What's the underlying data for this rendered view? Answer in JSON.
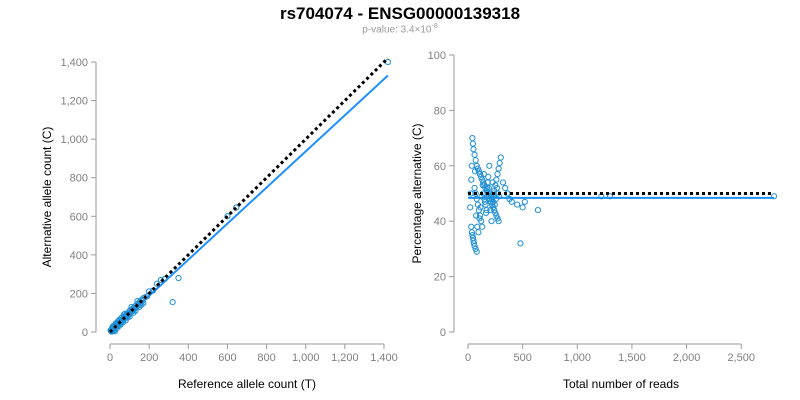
{
  "figure": {
    "title": "rs704074 - ENSG00000139318",
    "subtitle_prefix": "p-value: 3.4×10",
    "subtitle_exponent": "-8"
  },
  "colors": {
    "points": "#1f8fd6",
    "fit_line": "#1e90ff",
    "reference_line": "#000000",
    "axis": "#9a9a9a"
  },
  "chart_data": [
    {
      "type": "scatter",
      "id": "left",
      "xlabel": "Reference allele count (T)",
      "ylabel": "Alternative allele count (C)",
      "xlim": [
        0,
        1400
      ],
      "ylim": [
        0,
        1400
      ],
      "xticks": [
        0,
        200,
        400,
        600,
        800,
        1000,
        1200,
        1400
      ],
      "xtick_labels": [
        "0",
        "200",
        "400",
        "600",
        "800",
        "1,000",
        "1,200",
        "1,400"
      ],
      "yticks": [
        0,
        200,
        400,
        600,
        800,
        1000,
        1200,
        1400
      ],
      "ytick_labels": [
        "0",
        "200",
        "400",
        "600",
        "800",
        "1,000",
        "1,200",
        "1,400"
      ],
      "grid": false,
      "legend": "none",
      "reference_line": {
        "style": "dotted",
        "x": [
          0,
          1420
        ],
        "y": [
          0,
          1420
        ]
      },
      "fit_line": {
        "style": "solid",
        "x": [
          0,
          1420
        ],
        "y": [
          0,
          1330
        ]
      },
      "points": [
        [
          5,
          6
        ],
        [
          8,
          10
        ],
        [
          10,
          7
        ],
        [
          12,
          15
        ],
        [
          15,
          12
        ],
        [
          14,
          18
        ],
        [
          18,
          20
        ],
        [
          20,
          16
        ],
        [
          22,
          25
        ],
        [
          25,
          20
        ],
        [
          28,
          30
        ],
        [
          30,
          26
        ],
        [
          32,
          35
        ],
        [
          35,
          30
        ],
        [
          38,
          40
        ],
        [
          40,
          36
        ],
        [
          42,
          45
        ],
        [
          45,
          42
        ],
        [
          48,
          50
        ],
        [
          50,
          44
        ],
        [
          55,
          55
        ],
        [
          58,
          52
        ],
        [
          60,
          62
        ],
        [
          62,
          58
        ],
        [
          65,
          68
        ],
        [
          68,
          60
        ],
        [
          70,
          72
        ],
        [
          72,
          66
        ],
        [
          75,
          80
        ],
        [
          78,
          74
        ],
        [
          80,
          85
        ],
        [
          82,
          78
        ],
        [
          85,
          90
        ],
        [
          88,
          84
        ],
        [
          90,
          95
        ],
        [
          92,
          88
        ],
        [
          95,
          100
        ],
        [
          98,
          92
        ],
        [
          100,
          110
        ],
        [
          105,
          100
        ],
        [
          110,
          115
        ],
        [
          112,
          106
        ],
        [
          115,
          120
        ],
        [
          118,
          112
        ],
        [
          120,
          125
        ],
        [
          125,
          118
        ],
        [
          130,
          135
        ],
        [
          135,
          128
        ],
        [
          140,
          145
        ],
        [
          145,
          138
        ],
        [
          150,
          155
        ],
        [
          155,
          150
        ],
        [
          160,
          165
        ],
        [
          165,
          160
        ],
        [
          170,
          175
        ],
        [
          180,
          180
        ],
        [
          190,
          185
        ],
        [
          200,
          210
        ],
        [
          220,
          215
        ],
        [
          240,
          250
        ],
        [
          260,
          270
        ],
        [
          280,
          275
        ],
        [
          320,
          155
        ],
        [
          350,
          280
        ],
        [
          600,
          600
        ],
        [
          645,
          645
        ],
        [
          1420,
          1400
        ],
        [
          10,
          2
        ],
        [
          15,
          5
        ],
        [
          20,
          8
        ],
        [
          25,
          4
        ],
        [
          12,
          25
        ],
        [
          18,
          32
        ],
        [
          30,
          45
        ],
        [
          40,
          55
        ],
        [
          45,
          30
        ],
        [
          55,
          40
        ],
        [
          60,
          75
        ],
        [
          70,
          90
        ],
        [
          80,
          60
        ],
        [
          90,
          75
        ],
        [
          100,
          80
        ],
        [
          110,
          130
        ],
        [
          120,
          100
        ],
        [
          130,
          110
        ],
        [
          140,
          160
        ],
        [
          150,
          130
        ],
        [
          160,
          140
        ],
        [
          170,
          150
        ],
        [
          50,
          65
        ],
        [
          35,
          20
        ],
        [
          26,
          38
        ],
        [
          16,
          24
        ],
        [
          8,
          14
        ],
        [
          22,
          10
        ],
        [
          6,
          3
        ],
        [
          3,
          8
        ],
        [
          44,
          58
        ],
        [
          66,
          50
        ],
        [
          76,
          95
        ]
      ]
    },
    {
      "type": "scatter",
      "id": "right",
      "xlabel": "Total number of reads",
      "ylabel": "Percentage alternative (C)",
      "xlim": [
        0,
        2800
      ],
      "ylim": [
        0,
        100
      ],
      "xticks": [
        0,
        500,
        1000,
        1500,
        2000,
        2500
      ],
      "xtick_labels": [
        "0",
        "500",
        "1,000",
        "1,500",
        "2,000",
        "2,500"
      ],
      "yticks": [
        0,
        20,
        40,
        60,
        80,
        100
      ],
      "ytick_labels": [
        "0",
        "20",
        "40",
        "60",
        "80",
        "100"
      ],
      "grid": false,
      "legend": "none",
      "reference_line": {
        "style": "dotted",
        "x": [
          0,
          2800
        ],
        "y": [
          50,
          50
        ]
      },
      "fit_line": {
        "style": "solid",
        "x": [
          0,
          2800
        ],
        "y": [
          48.4,
          48.4
        ]
      },
      "points": [
        [
          40,
          70
        ],
        [
          45,
          68
        ],
        [
          50,
          66
        ],
        [
          60,
          64
        ],
        [
          70,
          62
        ],
        [
          80,
          60
        ],
        [
          90,
          59
        ],
        [
          100,
          58
        ],
        [
          110,
          57
        ],
        [
          120,
          56
        ],
        [
          130,
          55
        ],
        [
          140,
          54
        ],
        [
          150,
          53
        ],
        [
          160,
          52
        ],
        [
          170,
          51
        ],
        [
          180,
          50
        ],
        [
          190,
          49
        ],
        [
          200,
          48
        ],
        [
          210,
          47
        ],
        [
          220,
          46
        ],
        [
          230,
          45
        ],
        [
          240,
          44
        ],
        [
          250,
          43
        ],
        [
          260,
          42
        ],
        [
          270,
          41
        ],
        [
          280,
          40
        ],
        [
          30,
          38
        ],
        [
          35,
          36
        ],
        [
          40,
          35
        ],
        [
          45,
          34
        ],
        [
          50,
          33
        ],
        [
          55,
          32
        ],
        [
          60,
          31
        ],
        [
          70,
          30
        ],
        [
          80,
          29
        ],
        [
          60,
          52
        ],
        [
          70,
          50
        ],
        [
          80,
          48
        ],
        [
          90,
          46
        ],
        [
          100,
          44
        ],
        [
          110,
          42
        ],
        [
          120,
          40
        ],
        [
          130,
          38
        ],
        [
          140,
          50
        ],
        [
          150,
          48
        ],
        [
          160,
          46
        ],
        [
          170,
          44
        ],
        [
          180,
          54
        ],
        [
          190,
          52
        ],
        [
          200,
          50
        ],
        [
          210,
          49
        ],
        [
          220,
          48
        ],
        [
          230,
          47
        ],
        [
          240,
          51
        ],
        [
          250,
          53
        ],
        [
          260,
          55
        ],
        [
          270,
          57
        ],
        [
          280,
          59
        ],
        [
          290,
          61
        ],
        [
          300,
          63
        ],
        [
          320,
          54
        ],
        [
          340,
          52
        ],
        [
          360,
          50
        ],
        [
          380,
          48
        ],
        [
          400,
          47
        ],
        [
          450,
          46
        ],
        [
          480,
          32
        ],
        [
          500,
          45
        ],
        [
          520,
          47
        ],
        [
          640,
          44
        ],
        [
          1220,
          49
        ],
        [
          1300,
          49
        ],
        [
          2800,
          49
        ],
        [
          20,
          45
        ],
        [
          25,
          50
        ],
        [
          30,
          55
        ],
        [
          35,
          60
        ],
        [
          65,
          58
        ],
        [
          75,
          42
        ],
        [
          85,
          38
        ],
        [
          95,
          36
        ],
        [
          105,
          41
        ],
        [
          115,
          45
        ],
        [
          125,
          49
        ],
        [
          135,
          53
        ],
        [
          145,
          57
        ],
        [
          155,
          47
        ],
        [
          165,
          43
        ],
        [
          175,
          52
        ],
        [
          185,
          56
        ],
        [
          195,
          60
        ],
        [
          205,
          44
        ],
        [
          215,
          40
        ],
        [
          225,
          54
        ],
        [
          235,
          50
        ],
        [
          245,
          46
        ],
        [
          255,
          48
        ],
        [
          265,
          52
        ],
        [
          275,
          50
        ],
        [
          285,
          49
        ]
      ]
    }
  ]
}
